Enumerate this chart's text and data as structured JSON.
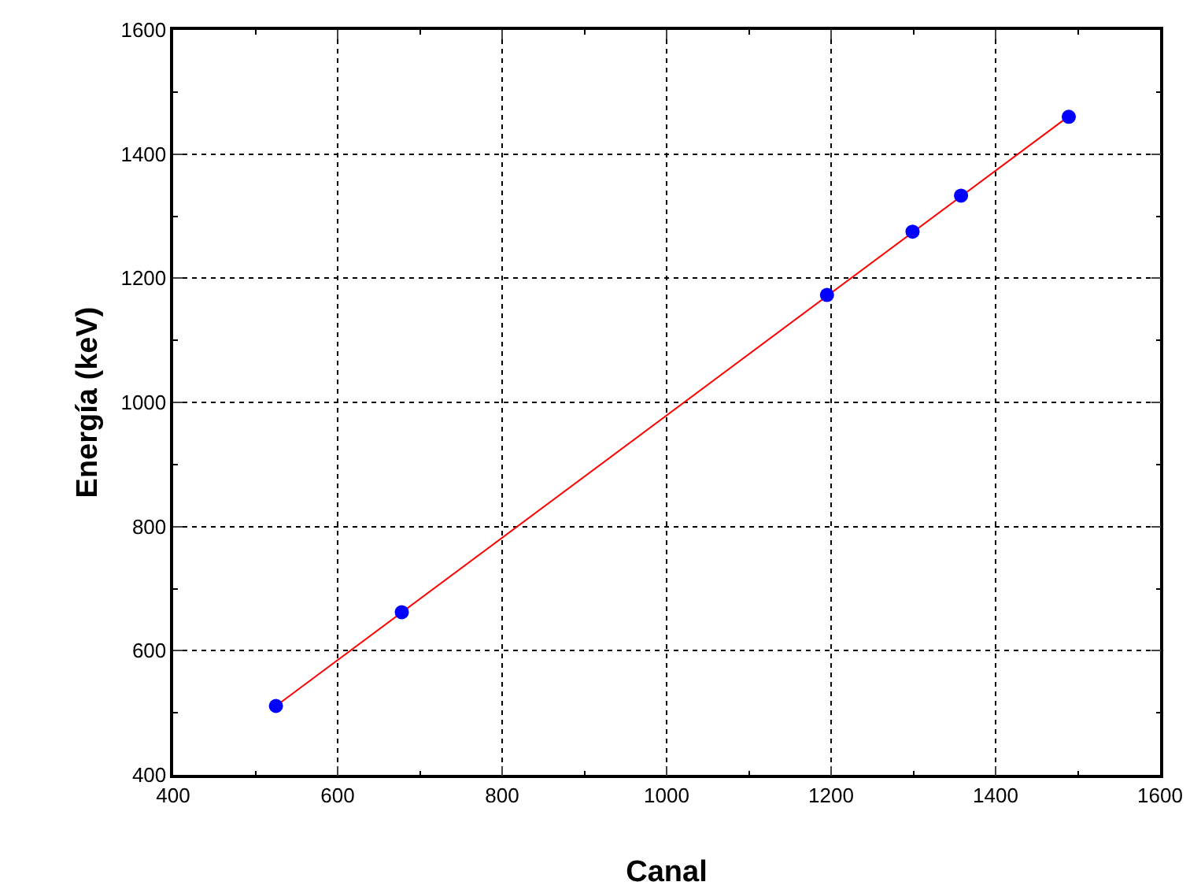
{
  "chart_data": {
    "type": "scatter",
    "xlabel": "Canal",
    "ylabel": "Energía (keV)",
    "xlim": [
      400,
      1600
    ],
    "xticks": [
      400,
      600,
      800,
      1000,
      1200,
      1400,
      1600
    ],
    "ylim": [
      400,
      1600
    ],
    "yticks": [
      400,
      600,
      800,
      1000,
      1200,
      1400,
      1600
    ],
    "grid": true,
    "marker": "circle",
    "series": [
      {
        "color": "#0000ff",
        "x": [
          525,
          678,
          1195,
          1299,
          1358,
          1489
        ],
        "values": [
          511,
          662,
          1173,
          1275,
          1333,
          1460
        ]
      },
      {
        "type": "line",
        "color": "#ff0000",
        "marker": "none",
        "line_style": "solid",
        "x": [
          525,
          1489
        ],
        "values": [
          511,
          1461
        ]
      }
    ]
  }
}
